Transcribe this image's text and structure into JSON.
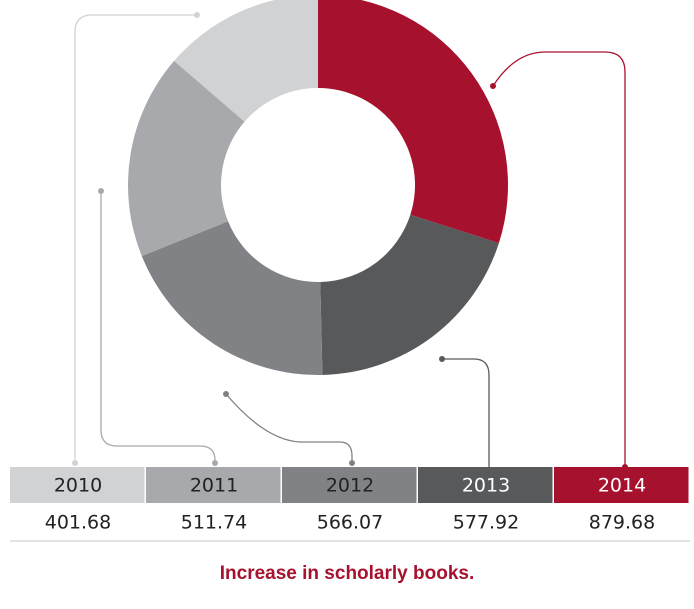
{
  "chart_data": {
    "type": "donut",
    "title": "Increase in scholarly books.",
    "categories": [
      "2010",
      "2011",
      "2012",
      "2013",
      "2014"
    ],
    "values": [
      401.68,
      511.74,
      566.07,
      577.92,
      879.68
    ],
    "colors": [
      "#d1d2d4",
      "#a7a9ac",
      "#808285",
      "#58595b",
      "#a6112e"
    ]
  }
}
